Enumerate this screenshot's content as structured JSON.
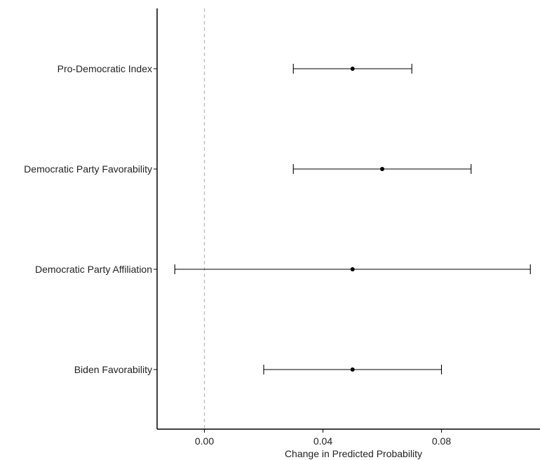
{
  "chart_data": {
    "type": "scatter",
    "subtype": "coefficient-plot",
    "title": "",
    "xlabel": "Change in Predicted Probability",
    "ylabel": "",
    "xlim": [
      -0.016,
      0.113
    ],
    "x_ticks": [
      0.0,
      0.04,
      0.08
    ],
    "x_tick_labels": [
      "0.00",
      "0.04",
      "0.08"
    ],
    "reference_line": {
      "x": 0,
      "style": "dashed",
      "color": "#bbbbbb"
    },
    "grid": false,
    "legend": "none",
    "categories": [
      "Pro-Democratic Index",
      "Democratic Party Favorability",
      "Democratic Party Affiliation",
      "Biden Favorability"
    ],
    "estimates": [
      0.05,
      0.06,
      0.05,
      0.05
    ],
    "lower": [
      0.03,
      0.03,
      -0.01,
      0.02
    ],
    "upper": [
      0.07,
      0.09,
      0.11,
      0.08
    ]
  }
}
